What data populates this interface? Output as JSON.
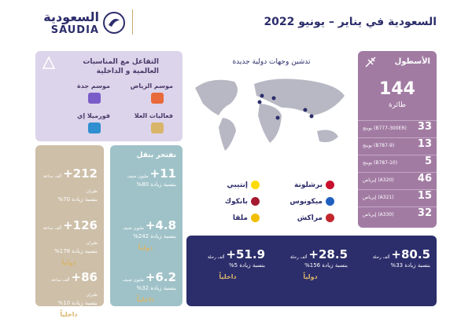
{
  "header": {
    "logo_arabic": "السعودية",
    "logo_latin": "SAUDIA",
    "title": "السعودية في يناير – يونيو 2022"
  },
  "fleet": {
    "title": "الأسطول",
    "total": "144",
    "total_label": "طائرة",
    "rows": [
      {
        "count": "33",
        "model": "بوينج (B777-300ER)"
      },
      {
        "count": "13",
        "model": "بوينج (B787-9)"
      },
      {
        "count": "5",
        "model": "بوينج (B787-10)"
      },
      {
        "count": "46",
        "model": "إيرباص (A320)"
      },
      {
        "count": "15",
        "model": "إيرباص (A321)"
      },
      {
        "count": "32",
        "model": "إيرباص (A330)"
      }
    ]
  },
  "map": {
    "title": "تدشين وجهات دولية جديدة",
    "destinations": [
      "برشلونة",
      "ميكونوس",
      "مراكش",
      "إنتيبي",
      "بانكوك",
      "ملقا"
    ]
  },
  "events": {
    "title": "التفاعل مع المناسبات العالمية و الداخلية",
    "items": [
      "موسم الرياض",
      "موسم جدة",
      "فعاليات العلا",
      "فورميلا إي"
    ]
  },
  "trips": {
    "stats": [
      {
        "value": "+80.5",
        "unit": "ألف رحلة",
        "change": "بنسبة زيادة 33%"
      },
      {
        "value": "+28.5",
        "unit": "ألف رحلة",
        "change": "بنسبة زيادة 156%",
        "region": "دولياً"
      },
      {
        "value": "+51.9",
        "unit": "ألف رحلة",
        "change": "بنسبة زيادة 5%",
        "region": "داخلياً"
      }
    ]
  },
  "guests": {
    "title": "نفتخر بنقل",
    "stats": [
      {
        "value": "+11",
        "unit": "مليون ضيف",
        "change": "بنسبة زيادة 80%"
      },
      {
        "value": "+4.8",
        "unit": "مليون ضيف",
        "change": "بنسبة زيادة 242%",
        "region": "دولياً"
      },
      {
        "value": "+6.2",
        "unit": "مليون ضيف",
        "change": "بنسبة زيادة 32%",
        "region": "داخلياً"
      }
    ]
  },
  "hours": {
    "stats": [
      {
        "value": "+212",
        "unit": "ألف ساعة طيران",
        "change": "بنسبة زيادة 70%"
      },
      {
        "value": "+126",
        "unit": "ألف ساعة طيران",
        "change": "بنسبة زيادة 178%",
        "region": "دولياً"
      },
      {
        "value": "+86",
        "unit": "ألف ساعة طيران",
        "change": "بنسبة زيادة 10%",
        "region": "داخلياً"
      }
    ]
  }
}
